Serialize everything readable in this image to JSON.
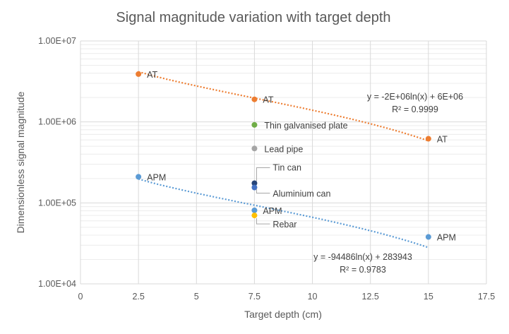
{
  "chart_data": {
    "type": "scatter",
    "title": "Signal magnitude variation with target depth",
    "xlabel": "Target depth (cm)",
    "ylabel": "Dimensionless signal magnitude",
    "xlim": [
      0,
      17.5
    ],
    "ylim": [
      10000,
      10000000
    ],
    "yscale": "log",
    "x_ticks": [
      "0",
      "2.5",
      "5",
      "7.5",
      "10",
      "12.5",
      "15",
      "17.5"
    ],
    "y_ticks": [
      "1.00E+04",
      "1.00E+05",
      "1.00E+06",
      "1.00E+07"
    ],
    "grid": true,
    "points": [
      {
        "label": "AT",
        "x": 2.5,
        "y": 3900000,
        "color": "#ED7D31"
      },
      {
        "label": "AT",
        "x": 7.5,
        "y": 1900000,
        "color": "#ED7D31"
      },
      {
        "label": "AT",
        "x": 15,
        "y": 620000,
        "color": "#ED7D31"
      },
      {
        "label": "APM",
        "x": 2.5,
        "y": 210000,
        "color": "#5B9BD5"
      },
      {
        "label": "APM",
        "x": 7.5,
        "y": 81000,
        "color": "#5B9BD5"
      },
      {
        "label": "APM",
        "x": 15,
        "y": 38000,
        "color": "#5B9BD5"
      },
      {
        "label": "Thin galvanised plate",
        "x": 7.5,
        "y": 920000,
        "color": "#70AD47"
      },
      {
        "label": "Lead pipe",
        "x": 7.5,
        "y": 470000,
        "color": "#A5A5A5"
      },
      {
        "label": "Tin can",
        "x": 7.5,
        "y": 175000,
        "color": "#264478"
      },
      {
        "label": "Aluminium can",
        "x": 7.5,
        "y": 155000,
        "color": "#4472C4"
      },
      {
        "label": "Rebar",
        "x": 7.5,
        "y": 70000,
        "color": "#FFC000"
      }
    ],
    "trendlines": [
      {
        "series": "AT",
        "a": -2000000,
        "b": 6000000,
        "x_from": 2.5,
        "x_to": 15,
        "color": "#ED7D31",
        "equation": "y = -2E+06ln(x) + 6E+06",
        "r2": "R² = 0.9999"
      },
      {
        "series": "APM",
        "a": -94486,
        "b": 283943,
        "x_from": 2.5,
        "x_to": 15,
        "color": "#5B9BD5",
        "equation": "y = -94486ln(x) + 283943",
        "r2": "R² = 0.9783"
      }
    ]
  }
}
